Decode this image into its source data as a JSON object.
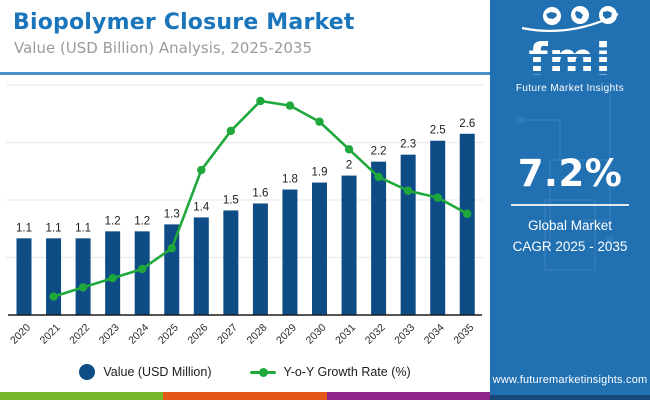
{
  "header": {
    "title": "Biopolymer Closure Market",
    "subtitle": "Value (USD Billion) Analysis, 2025-2035"
  },
  "sidebar": {
    "logo": {
      "brand": "fmi",
      "caption": "Future Market Insights",
      "icons": [
        "map-icon",
        "map-icon",
        "globe-icon"
      ]
    },
    "stat": {
      "value": "7.2%",
      "label_line1": "Global Market",
      "label_line2": "CAGR 2025 - 2035"
    },
    "website": "www.futuremarketinsights.com"
  },
  "legend": [
    {
      "label": "Value (USD Million)",
      "color": "#0E4C86",
      "type": "circle"
    },
    {
      "label": "Y-o-Y Growth Rate (%)",
      "color": "#1FA83C",
      "type": "line"
    }
  ],
  "colors": {
    "bar": "#0E4C86",
    "line": "#1FA83C",
    "title": "#1B75BB",
    "sidebar_bg": "#2171B2",
    "header_rule": "#4A8FC7",
    "footer_strip": [
      "#76B82A",
      "#E4571B",
      "#8F268C"
    ],
    "gridline": "#E9ECEE",
    "axis": "#1B1B1B"
  },
  "chart_data": {
    "type": "bar",
    "title": "Biopolymer Closure Market",
    "subtitle": "Value (USD Billion) Analysis, 2025-2035",
    "categories": [
      "2020",
      "2021",
      "2022",
      "2023",
      "2024",
      "2025",
      "2026",
      "2027",
      "2028",
      "2029",
      "2030",
      "2031",
      "2032",
      "2033",
      "2034",
      "2035"
    ],
    "series": [
      {
        "name": "Value (USD Million)",
        "type": "bar",
        "values": [
          1.1,
          1.1,
          1.1,
          1.2,
          1.2,
          1.3,
          1.4,
          1.5,
          1.6,
          1.8,
          1.9,
          2.0,
          2.2,
          2.3,
          2.5,
          2.6
        ],
        "labels": [
          "1.1",
          "1.1",
          "1.1",
          "1.2",
          "1.2",
          "1.3",
          "1.4",
          "1.5",
          "1.6",
          "1.8",
          "1.9",
          "2",
          "2.2",
          "2.3",
          "2.5",
          "2.6"
        ],
        "color": "#0E4C86"
      },
      {
        "name": "Y-o-Y Growth Rate (%)",
        "type": "line",
        "x_start_index": 1,
        "values_estimated": true,
        "values": [
          0.8,
          1.2,
          1.6,
          2.0,
          2.9,
          6.3,
          8.0,
          9.3,
          9.1,
          8.4,
          7.2,
          6.0,
          5.4,
          5.1,
          4.4
        ],
        "color": "#1FA83C"
      }
    ],
    "xlabel": "",
    "ylabel": "",
    "ylim_value": [
      0,
      3.4
    ],
    "ylim_growth": [
      0,
      10.3
    ],
    "grid": true,
    "legend_position": "bottom"
  }
}
